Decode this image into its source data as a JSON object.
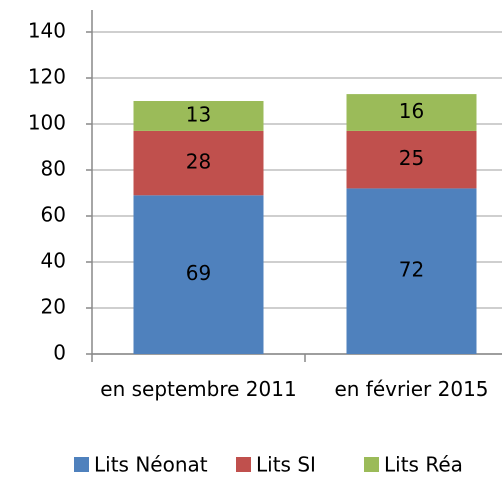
{
  "chart_data": {
    "type": "stacked_bar",
    "categories": [
      "en septembre 2011",
      "en février 2015"
    ],
    "series": [
      {
        "name": "Lits Néonat",
        "color": "#4f81bd",
        "values": [
          69,
          72
        ]
      },
      {
        "name": "Lits SI",
        "color": "#c0504d",
        "values": [
          28,
          25
        ]
      },
      {
        "name": "Lits Réa",
        "color": "#9bbb59",
        "values": [
          13,
          16
        ]
      }
    ],
    "ylim": [
      0,
      140
    ],
    "yticks": [
      0,
      20,
      40,
      60,
      80,
      100,
      120,
      140
    ],
    "grid": true,
    "legend": "bottom"
  }
}
